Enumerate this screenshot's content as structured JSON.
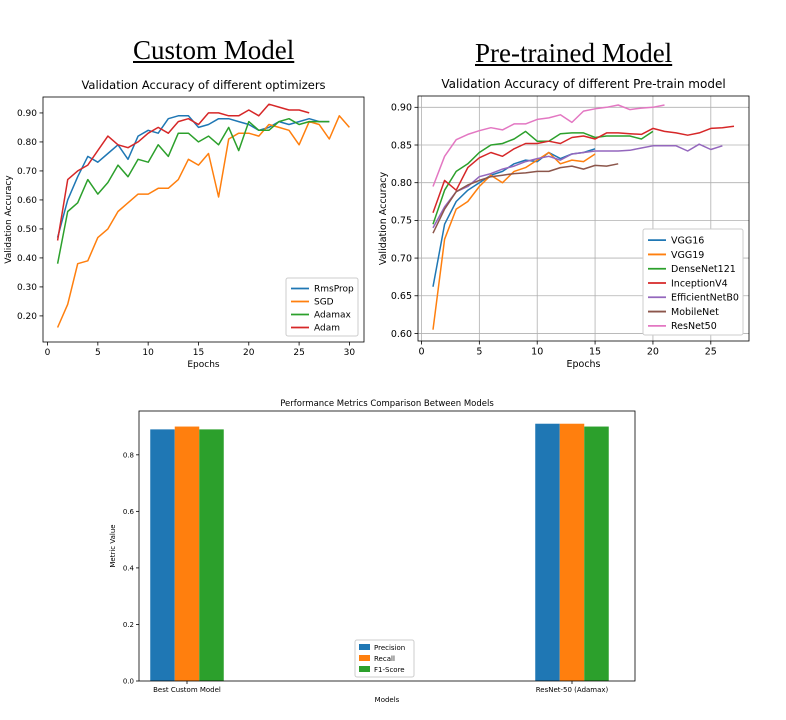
{
  "headings": {
    "left": "Custom Model",
    "right": "Pre-trained Model"
  },
  "chart_data": [
    {
      "type": "line",
      "title": "Validation Accuracy of different optimizers",
      "xlabel": "Epochs",
      "ylabel": "Validation Accuracy",
      "xlim": [
        -0.45,
        31.45
      ],
      "ylim": [
        0.11,
        0.955
      ],
      "xticks": [
        0,
        5,
        10,
        15,
        20,
        25,
        30
      ],
      "yticks": [
        0.2,
        0.3,
        0.4,
        0.5,
        0.6,
        0.7,
        0.8,
        0.9
      ],
      "grid": false,
      "legend_position": "lower-right",
      "series": [
        {
          "name": "RmsProp",
          "color": "#1f77b4",
          "x": [
            1,
            2,
            3,
            4,
            5,
            6,
            7,
            8,
            9,
            10,
            11,
            12,
            13,
            14,
            15,
            16,
            17,
            18,
            19,
            20,
            21,
            22,
            23,
            24,
            25,
            26,
            27,
            28
          ],
          "y": [
            0.47,
            0.6,
            0.68,
            0.75,
            0.73,
            0.76,
            0.79,
            0.74,
            0.82,
            0.84,
            0.83,
            0.88,
            0.89,
            0.89,
            0.85,
            0.86,
            0.88,
            0.88,
            0.87,
            0.86,
            0.84,
            0.85,
            0.87,
            0.86,
            0.87,
            0.88,
            0.87,
            0.87
          ]
        },
        {
          "name": "SGD",
          "color": "#ff7f0e",
          "x": [
            1,
            2,
            3,
            4,
            5,
            6,
            7,
            8,
            9,
            10,
            11,
            12,
            13,
            14,
            15,
            16,
            17,
            18,
            19,
            20,
            21,
            22,
            23,
            24,
            25,
            26,
            27,
            28,
            29,
            30
          ],
          "y": [
            0.16,
            0.24,
            0.38,
            0.39,
            0.47,
            0.5,
            0.56,
            0.59,
            0.62,
            0.62,
            0.64,
            0.64,
            0.67,
            0.74,
            0.72,
            0.76,
            0.61,
            0.81,
            0.83,
            0.83,
            0.82,
            0.86,
            0.85,
            0.84,
            0.79,
            0.87,
            0.86,
            0.81,
            0.89,
            0.85
          ]
        },
        {
          "name": "Adamax",
          "color": "#2ca02c",
          "x": [
            1,
            2,
            3,
            4,
            5,
            6,
            7,
            8,
            9,
            10,
            11,
            12,
            13,
            14,
            15,
            16,
            17,
            18,
            19,
            20,
            21,
            22,
            23,
            24,
            25,
            26,
            27,
            28
          ],
          "y": [
            0.38,
            0.56,
            0.59,
            0.67,
            0.62,
            0.66,
            0.72,
            0.68,
            0.74,
            0.73,
            0.79,
            0.75,
            0.83,
            0.83,
            0.8,
            0.82,
            0.79,
            0.85,
            0.77,
            0.87,
            0.84,
            0.84,
            0.87,
            0.88,
            0.86,
            0.87,
            0.87,
            0.87
          ]
        },
        {
          "name": "Adam",
          "color": "#d62728",
          "x": [
            1,
            2,
            3,
            4,
            5,
            6,
            7,
            8,
            9,
            10,
            11,
            12,
            13,
            14,
            15,
            16,
            17,
            18,
            19,
            20,
            21,
            22,
            23,
            24,
            25,
            26
          ],
          "y": [
            0.46,
            0.67,
            0.7,
            0.72,
            0.77,
            0.82,
            0.79,
            0.78,
            0.8,
            0.83,
            0.85,
            0.83,
            0.87,
            0.88,
            0.86,
            0.9,
            0.9,
            0.89,
            0.89,
            0.91,
            0.89,
            0.93,
            0.92,
            0.91,
            0.91,
            0.9
          ]
        }
      ]
    },
    {
      "type": "line",
      "title": "Validation Accuracy of different Pre-train model",
      "xlabel": "Epochs",
      "ylabel": "Validation Accuracy",
      "xlim": [
        -0.3,
        28.3
      ],
      "ylim": [
        0.59,
        0.915
      ],
      "xticks": [
        0,
        5,
        10,
        15,
        20,
        25
      ],
      "yticks": [
        0.6,
        0.65,
        0.7,
        0.75,
        0.8,
        0.85,
        0.9
      ],
      "grid": true,
      "legend_position": "lower-right",
      "series": [
        {
          "name": "VGG16",
          "color": "#1f77b4",
          "x": [
            1,
            2,
            3,
            4,
            5,
            6,
            7,
            8,
            9,
            10,
            11,
            12,
            13,
            14,
            15
          ],
          "y": [
            0.662,
            0.745,
            0.775,
            0.79,
            0.8,
            0.81,
            0.815,
            0.825,
            0.83,
            0.828,
            0.84,
            0.832,
            0.838,
            0.84,
            0.845
          ]
        },
        {
          "name": "VGG19",
          "color": "#ff7f0e",
          "x": [
            1,
            2,
            3,
            4,
            5,
            6,
            7,
            8,
            9,
            10,
            11,
            12,
            13,
            14,
            15
          ],
          "y": [
            0.605,
            0.725,
            0.765,
            0.775,
            0.795,
            0.81,
            0.8,
            0.815,
            0.82,
            0.83,
            0.84,
            0.825,
            0.83,
            0.828,
            0.838
          ]
        },
        {
          "name": "DenseNet121",
          "color": "#2ca02c",
          "x": [
            1,
            2,
            3,
            4,
            5,
            6,
            7,
            8,
            9,
            10,
            11,
            12,
            13,
            14,
            15,
            16,
            17,
            18,
            19,
            20
          ],
          "y": [
            0.745,
            0.79,
            0.815,
            0.825,
            0.84,
            0.85,
            0.852,
            0.858,
            0.868,
            0.855,
            0.855,
            0.865,
            0.866,
            0.866,
            0.86,
            0.862,
            0.862,
            0.862,
            0.858,
            0.868
          ]
        },
        {
          "name": "InceptionV4",
          "color": "#d62728",
          "x": [
            1,
            2,
            3,
            4,
            5,
            6,
            7,
            8,
            9,
            10,
            11,
            12,
            13,
            14,
            15,
            16,
            17,
            18,
            19,
            20,
            21,
            22,
            23,
            24,
            25,
            26,
            27
          ],
          "y": [
            0.76,
            0.803,
            0.79,
            0.82,
            0.833,
            0.84,
            0.835,
            0.845,
            0.852,
            0.852,
            0.855,
            0.852,
            0.86,
            0.862,
            0.858,
            0.866,
            0.866,
            0.865,
            0.864,
            0.872,
            0.868,
            0.866,
            0.863,
            0.866,
            0.872,
            0.873,
            0.875
          ]
        },
        {
          "name": "EfficientNetB0",
          "color": "#9467bd",
          "x": [
            1,
            2,
            3,
            4,
            5,
            6,
            7,
            8,
            9,
            10,
            11,
            12,
            13,
            14,
            15,
            16,
            17,
            18,
            19,
            20,
            21,
            22,
            23,
            24,
            25,
            26
          ],
          "y": [
            0.74,
            0.768,
            0.788,
            0.795,
            0.808,
            0.812,
            0.818,
            0.822,
            0.828,
            0.832,
            0.835,
            0.83,
            0.838,
            0.84,
            0.842,
            0.842,
            0.842,
            0.843,
            0.846,
            0.849,
            0.849,
            0.849,
            0.842,
            0.851,
            0.844,
            0.849
          ]
        },
        {
          "name": "MobileNet",
          "color": "#8c564b",
          "x": [
            1,
            2,
            3,
            4,
            5,
            6,
            7,
            8,
            9,
            10,
            11,
            12,
            13,
            14,
            15,
            16,
            17
          ],
          "y": [
            0.733,
            0.765,
            0.788,
            0.797,
            0.803,
            0.808,
            0.81,
            0.812,
            0.813,
            0.815,
            0.815,
            0.82,
            0.822,
            0.818,
            0.823,
            0.822,
            0.825
          ]
        },
        {
          "name": "ResNet50",
          "color": "#e377c2",
          "x": [
            1,
            2,
            3,
            4,
            5,
            6,
            7,
            8,
            9,
            10,
            11,
            12,
            13,
            14,
            15,
            16,
            17,
            18,
            19,
            20,
            21
          ],
          "y": [
            0.795,
            0.835,
            0.857,
            0.864,
            0.869,
            0.873,
            0.87,
            0.878,
            0.878,
            0.884,
            0.886,
            0.89,
            0.88,
            0.895,
            0.898,
            0.9,
            0.903,
            0.897,
            0.899,
            0.9,
            0.903
          ]
        }
      ]
    },
    {
      "type": "bar",
      "title": "Performance Metrics Comparison Between Models",
      "xlabel": "Models",
      "ylabel": "Metric Value",
      "categories": [
        "Best Custom Model",
        "ResNet-50 (Adamax)"
      ],
      "ylim": [
        0,
        0.955
      ],
      "yticks": [
        0.0,
        0.2,
        0.4,
        0.6,
        0.8
      ],
      "grid": false,
      "legend_position": "lower-center",
      "series": [
        {
          "name": "Precision",
          "color": "#1f77b4",
          "values": [
            0.89,
            0.91
          ]
        },
        {
          "name": "Recall",
          "color": "#ff7f0e",
          "values": [
            0.9,
            0.91
          ]
        },
        {
          "name": "F1-Score",
          "color": "#2ca02c",
          "values": [
            0.89,
            0.9
          ]
        }
      ]
    }
  ]
}
